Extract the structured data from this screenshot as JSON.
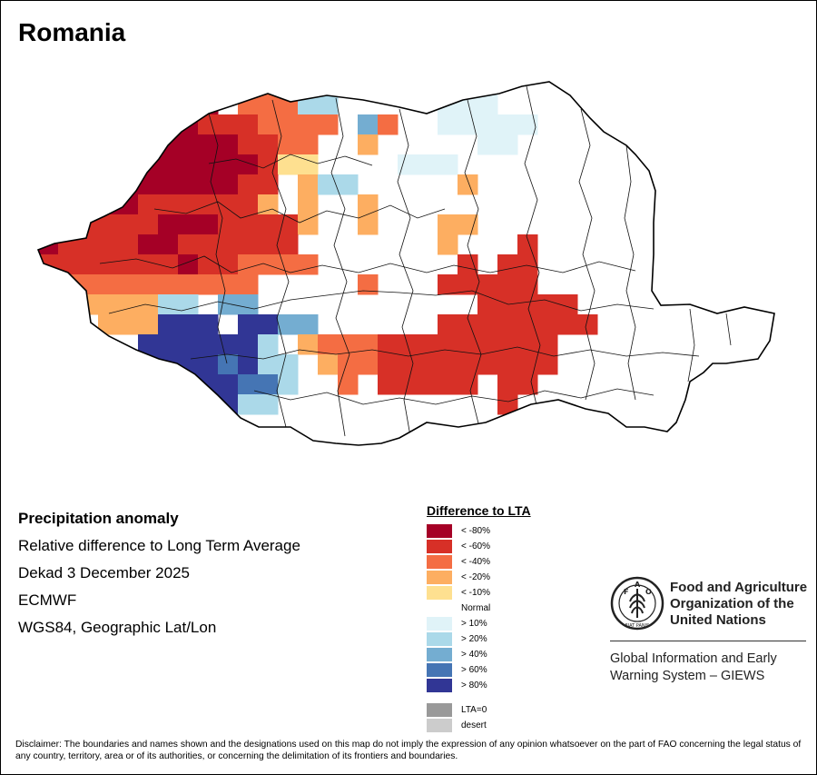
{
  "title": "Romania",
  "info": {
    "title": "Precipitation anomaly",
    "subtitle": "Relative difference to Long Term Average",
    "period": "Dekad 3 December 2025",
    "source": "ECMWF",
    "projection": "WGS84, Geographic Lat/Lon"
  },
  "legend": {
    "title": "Difference to LTA",
    "items": [
      {
        "label": "< -80%",
        "color": "#a50026"
      },
      {
        "label": "< -60%",
        "color": "#d73027"
      },
      {
        "label": "< -40%",
        "color": "#f46d43"
      },
      {
        "label": "< -20%",
        "color": "#fdae61"
      },
      {
        "label": "< -10%",
        "color": "#fee090"
      },
      {
        "label": "Normal",
        "color": "#ffffff"
      },
      {
        "label": "> 10%",
        "color": "#e0f3f8"
      },
      {
        "label": "> 20%",
        "color": "#abd9e9"
      },
      {
        "label": "> 40%",
        "color": "#74add1"
      },
      {
        "label": "> 60%",
        "color": "#4575b4"
      },
      {
        "label": "> 80%",
        "color": "#313695"
      }
    ],
    "extra": [
      {
        "label": "LTA=0",
        "color": "#999999"
      },
      {
        "label": "desert",
        "color": "#cccccc"
      }
    ]
  },
  "map_data": {
    "grid_rows": [
      "..............................",
      "..............................",
      ".......999.444HH.....EEE......",
      "......9998884444.L4..EEEEE....",
      "....99999996644..3.....DD.....",
      "....99999999622....DDD........",
      "...9999999966.3GH.....3.......",
      "..99998888663.3..3............",
      ".88888899988663..3...33.......",
      ".9888899888666.......3...6....",
      ".88888669884444.......6.66....",
      "..4444444444.....4...66666....",
      "...3333HH.LL...........66666..",
      "....333JJJ.JJLL......66666666.",
      "......JJJJJJG.3444666666666...",
      "......JJJJIJGH.344666666666...",
      ".......JJJJIIH..4.66666.66....",
      "........JJJHH...........6.....",
      "..............................",
      ".............................."
    ],
    "palette_keys": {
      "9": "< -80%",
      "8": "< -60%",
      "6": "< -60%",
      "4": "< -40%",
      "3": "< -20%",
      "2": "< -10%",
      ".": "Normal",
      "E": "> 10%",
      "G": "> 20%",
      "H": "> 20%",
      "L": "> 40%",
      "I": "> 60%",
      "J": "> 80%",
      "D": "> 10%"
    }
  },
  "fao": {
    "logo_letters": [
      "F",
      "A",
      "O"
    ],
    "motto": "FIAT PANIS",
    "name_line1": "Food and Agriculture",
    "name_line2": "Organization of the",
    "name_line3": "United Nations",
    "giews_line1": "Global Information and Early",
    "giews_line2": "Warning System – GIEWS"
  },
  "disclaimer": "Disclaimer: The boundaries and names shown and the designations used on this map do not imply the expression of any opinion whatsoever on the part of FAO concerning the legal status of any country, territory, area or of its authorities, or concerning the delimitation of its frontiers and boundaries."
}
